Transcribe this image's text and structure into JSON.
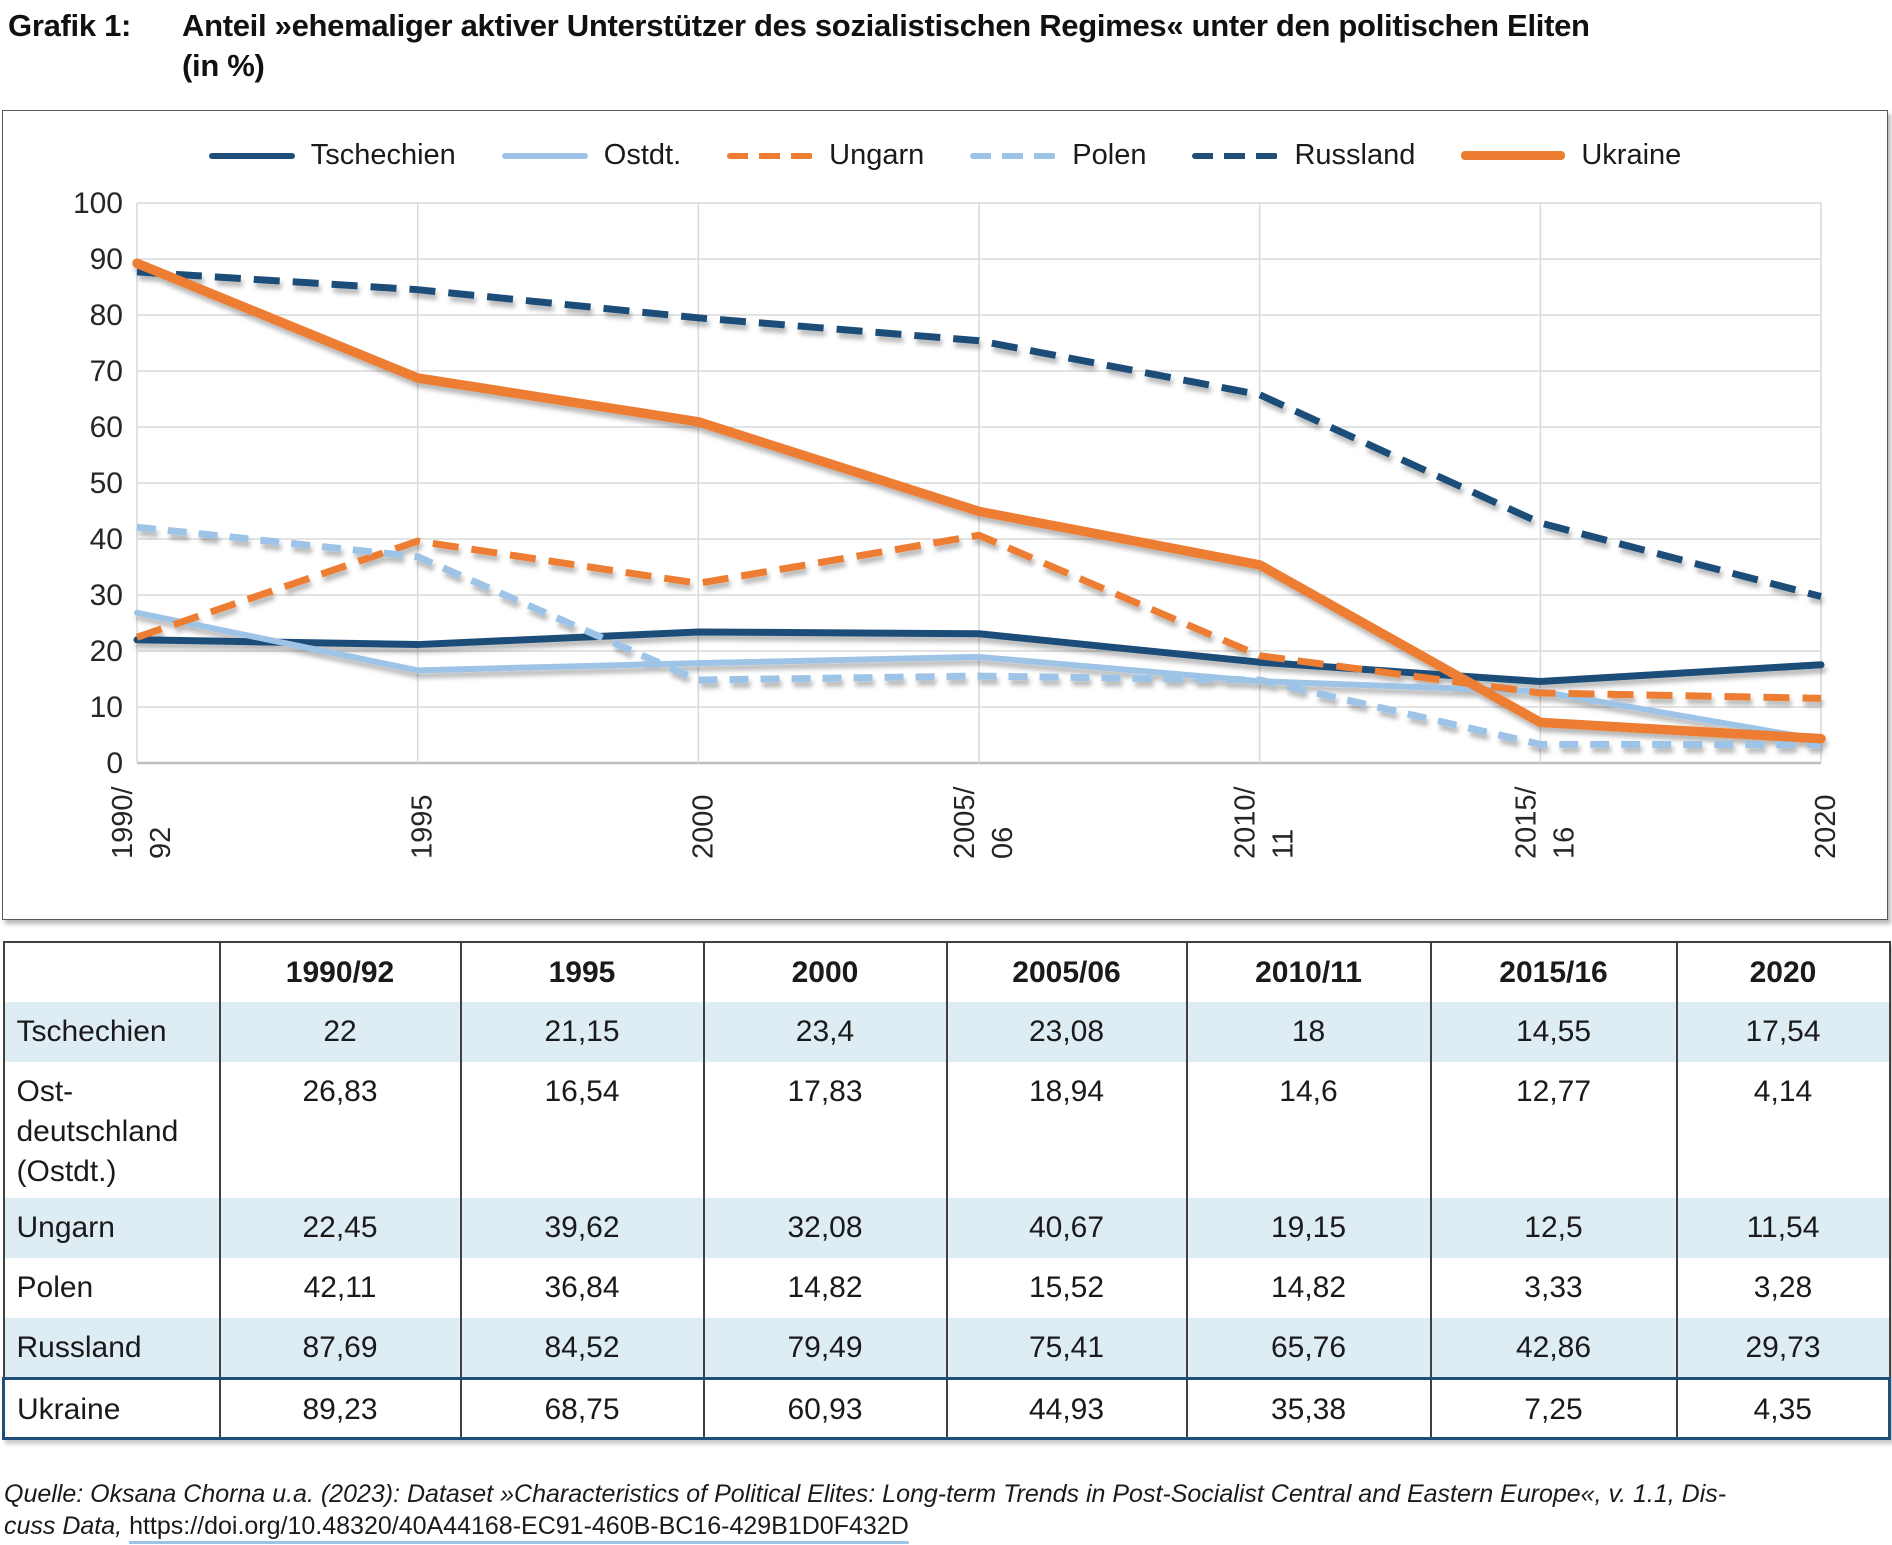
{
  "header": {
    "label": "Grafik 1:",
    "title_line1": "Anteil »ehemaliger aktiver Unterstützer des sozialistischen Regimes« unter den politischen Eliten",
    "title_line2": "(in %)"
  },
  "chart_data": {
    "type": "line",
    "title": "",
    "xlabel": "",
    "ylabel": "",
    "ylim": [
      0,
      100
    ],
    "ytick_step": 10,
    "grid": true,
    "legend_position": "top",
    "categories": [
      "1990/92",
      "1995",
      "2000",
      "2005/06",
      "2010/11",
      "2015/16",
      "2020"
    ],
    "x_tick_lines": [
      [
        "1990/",
        "92"
      ],
      [
        "1995"
      ],
      [
        "2000"
      ],
      [
        "2005/",
        "06"
      ],
      [
        "2010/",
        "11"
      ],
      [
        "2015/",
        "16"
      ],
      [
        "2020"
      ]
    ],
    "series": [
      {
        "name": "Tschechien",
        "values": [
          22,
          21.15,
          23.4,
          23.08,
          18,
          14.55,
          17.54
        ],
        "color": "#1F4E79",
        "dash": "solid",
        "width": 7
      },
      {
        "name": "Ostdt.",
        "values": [
          26.83,
          16.54,
          17.83,
          18.94,
          14.6,
          12.77,
          4.14
        ],
        "color": "#9DC3E6",
        "dash": "solid",
        "width": 6
      },
      {
        "name": "Ungarn",
        "values": [
          22.45,
          39.62,
          32.08,
          40.67,
          19.15,
          12.5,
          11.54
        ],
        "color": "#ED7D31",
        "dash": "26 13",
        "width": 7
      },
      {
        "name": "Polen",
        "values": [
          42.11,
          36.84,
          14.82,
          15.52,
          14.82,
          3.33,
          3.28
        ],
        "color": "#9DC3E6",
        "dash": "19 12",
        "width": 7
      },
      {
        "name": "Russland",
        "values": [
          87.69,
          84.52,
          79.49,
          75.41,
          65.76,
          42.86,
          29.73
        ],
        "color": "#1F4E79",
        "dash": "26 13",
        "width": 7
      },
      {
        "name": "Ukraine",
        "values": [
          89.23,
          68.75,
          60.93,
          44.93,
          35.38,
          7.25,
          4.35
        ],
        "color": "#ED7D31",
        "dash": "solid",
        "width": 9.5
      }
    ],
    "colors": {
      "gridline": "#D9D9D9",
      "axis_line": "#BFBFBF",
      "tick_text": "#262626"
    }
  },
  "table": {
    "col_headers": [
      "",
      "1990/92",
      "1995",
      "2000",
      "2005/06",
      "2010/11",
      "2015/16",
      "2020"
    ],
    "rows": [
      {
        "label_lines": [
          "Tschechien"
        ],
        "values": [
          "22",
          "21,15",
          "23,4",
          "23,08",
          "18",
          "14,55",
          "17,54"
        ],
        "shaded": true,
        "highlight": false
      },
      {
        "label_lines": [
          "Ost-",
          "deutschland",
          "(Ostdt.)"
        ],
        "values": [
          "26,83",
          "16,54",
          "17,83",
          "18,94",
          "14,6",
          "12,77",
          "4,14"
        ],
        "shaded": false,
        "highlight": false
      },
      {
        "label_lines": [
          "Ungarn"
        ],
        "values": [
          "22,45",
          "39,62",
          "32,08",
          "40,67",
          "19,15",
          "12,5",
          "11,54"
        ],
        "shaded": true,
        "highlight": false
      },
      {
        "label_lines": [
          "Polen"
        ],
        "values": [
          "42,11",
          "36,84",
          "14,82",
          "15,52",
          "14,82",
          "3,33",
          "3,28"
        ],
        "shaded": false,
        "highlight": false
      },
      {
        "label_lines": [
          "Russland"
        ],
        "values": [
          "87,69",
          "84,52",
          "79,49",
          "75,41",
          "65,76",
          "42,86",
          "29,73"
        ],
        "shaded": true,
        "highlight": false
      },
      {
        "label_lines": [
          "Ukraine"
        ],
        "values": [
          "89,23",
          "68,75",
          "60,93",
          "44,93",
          "35,38",
          "7,25",
          "4,35"
        ],
        "shaded": false,
        "highlight": true
      }
    ]
  },
  "source": {
    "line1": "Quelle: Oksana Chorna u.a. (2023): Dataset »Characteristics of Political Elites: Long-term Trends in Post-Socialist Central and Eastern Europe«, v. 1.1, Dis-",
    "line2_prefix": "cuss Data, ",
    "link": "https://doi.org/10.48320/40A44168-EC91-460B-BC16-429B1D0F432D"
  },
  "accent_colors": {
    "navy": "#1F4E79",
    "light_blue": "#9DC3E6",
    "orange": "#ED7D31",
    "row_shade": "#DEEDF4"
  }
}
